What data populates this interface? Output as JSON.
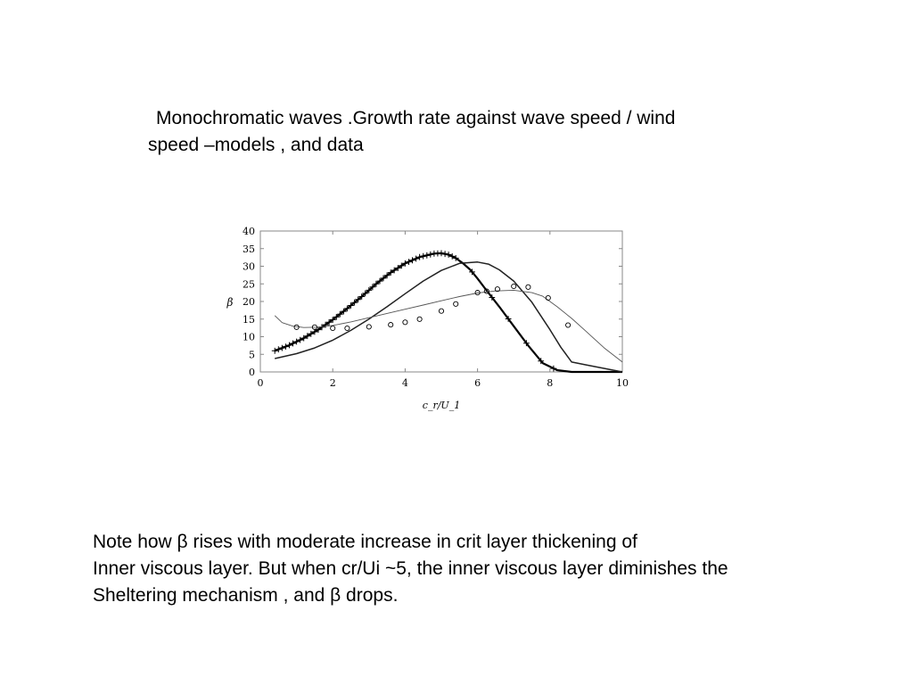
{
  "slide": {
    "title_line1": "Monochromatic waves .Growth rate  against  wave speed / wind",
    "title_line2": "speed –models , and data",
    "note_line1": "Note  how β rises with moderate increase in crit layer thickening of",
    "note_line2": "Inner viscous layer. But when  cr/Ui  ~5, the inner viscous layer diminishes the",
    "note_line3": "Sheltering mechanism , and  β  drops."
  },
  "chart_data": {
    "type": "line",
    "title": "",
    "xlabel": "c_r/U_1",
    "ylabel": "β",
    "xlim": [
      0,
      10
    ],
    "ylim": [
      0,
      40
    ],
    "xticks": [
      0,
      2,
      4,
      6,
      8,
      10
    ],
    "yticks": [
      0,
      5,
      10,
      15,
      20,
      25,
      30,
      35,
      40
    ],
    "grid": false,
    "series": [
      {
        "style": "thick-line-plus-markers",
        "color": "#000000",
        "x": [
          0.4,
          0.8,
          1.2,
          1.6,
          2.0,
          2.4,
          2.8,
          3.2,
          3.6,
          4.0,
          4.4,
          4.8,
          5.0,
          5.2,
          5.4,
          5.6,
          5.8,
          6.0,
          6.2,
          6.6,
          7.0,
          7.4,
          7.8,
          8.2,
          8.6,
          9.0,
          10.0
        ],
        "y": [
          6.0,
          7.6,
          9.6,
          12.0,
          14.8,
          18.0,
          21.4,
          25.0,
          28.2,
          30.8,
          32.6,
          33.6,
          33.7,
          33.3,
          32.3,
          30.8,
          29.0,
          26.5,
          23.8,
          18.5,
          13.0,
          7.5,
          2.5,
          0.5,
          0.0,
          0.0,
          0.0
        ]
      },
      {
        "style": "medium-line",
        "color": "#222222",
        "x": [
          0.4,
          1.0,
          1.5,
          2.0,
          2.5,
          3.0,
          3.5,
          4.0,
          4.5,
          5.0,
          5.5,
          6.0,
          6.3,
          6.6,
          7.0,
          7.5,
          8.0,
          8.3,
          8.6,
          9.0,
          10.0
        ],
        "y": [
          3.8,
          5.2,
          6.8,
          9.0,
          11.8,
          15.0,
          18.5,
          22.2,
          25.8,
          28.8,
          30.8,
          31.2,
          30.6,
          29.0,
          25.8,
          19.8,
          12.0,
          7.0,
          2.8,
          2.0,
          0.0
        ]
      },
      {
        "style": "thin-line",
        "color": "#555555",
        "x": [
          0.4,
          0.6,
          0.9,
          1.2,
          1.6,
          2.0,
          2.5,
          3.0,
          3.5,
          4.0,
          4.5,
          5.0,
          5.5,
          6.0,
          6.5,
          7.0,
          7.5,
          7.8,
          8.2,
          8.6,
          9.0,
          9.5,
          10.0
        ],
        "y": [
          16.0,
          14.0,
          13.0,
          12.6,
          12.7,
          13.2,
          14.2,
          15.4,
          16.6,
          17.8,
          19.0,
          20.2,
          21.4,
          22.4,
          23.0,
          23.2,
          22.5,
          21.5,
          18.5,
          15.2,
          11.5,
          6.8,
          2.8
        ]
      },
      {
        "style": "open-circle-markers",
        "color": "#000000",
        "x": [
          1.0,
          1.5,
          2.0,
          2.4,
          3.0,
          3.6,
          4.0,
          4.4,
          5.0,
          5.4,
          6.0,
          6.25,
          6.55,
          7.0,
          7.4,
          7.95,
          8.5
        ],
        "y": [
          12.7,
          12.7,
          12.4,
          12.4,
          12.8,
          13.4,
          14.1,
          15.0,
          17.3,
          19.3,
          22.5,
          22.9,
          23.5,
          24.3,
          24.1,
          21.0,
          13.3
        ]
      }
    ]
  }
}
